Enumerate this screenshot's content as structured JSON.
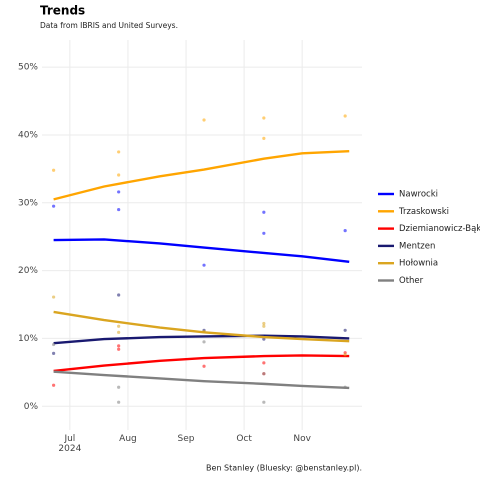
{
  "chart_data": {
    "type": "line",
    "title": "Trends",
    "subtitle": "Data from IBRIS and United Surveys.",
    "caption": "Ben Stanley (Bluesky: @benstanley.pl).",
    "xlim": [
      6.52,
      12.03
    ],
    "xticks": [
      {
        "value": 7,
        "label": "Jul\n2024"
      },
      {
        "value": 8,
        "label": "Aug"
      },
      {
        "value": 9,
        "label": "Sep"
      },
      {
        "value": 10,
        "label": "Oct"
      },
      {
        "value": 11,
        "label": "Nov"
      }
    ],
    "ylim": [
      -3.5,
      54
    ],
    "yticks": [
      {
        "value": 0,
        "label": "0%"
      },
      {
        "value": 10,
        "label": "10%"
      },
      {
        "value": 20,
        "label": "20%"
      },
      {
        "value": 30,
        "label": "30%"
      },
      {
        "value": 40,
        "label": "40%"
      },
      {
        "value": 50,
        "label": "50%"
      }
    ],
    "grid": true,
    "legend": "right",
    "series": [
      {
        "name": "Nawrocki",
        "color": "#0000ff",
        "x": [
          6.72,
          7.84,
          7.84,
          9.31,
          10.34,
          10.34,
          11.74
        ],
        "values": [
          29.5,
          31.6,
          29.0,
          20.8,
          28.6,
          25.5,
          25.9
        ],
        "smooth_x": [
          6.72,
          7.59,
          8.55,
          9.31,
          10.34,
          11.0,
          11.81
        ],
        "smooth": [
          24.5,
          24.6,
          24.0,
          23.4,
          22.6,
          22.1,
          21.3
        ]
      },
      {
        "name": "Trzaskowski",
        "color": "#ffa500",
        "x": [
          6.72,
          7.84,
          7.84,
          9.31,
          10.34,
          10.34,
          11.74
        ],
        "values": [
          34.8,
          37.5,
          34.1,
          42.2,
          42.5,
          39.5,
          42.8
        ],
        "smooth_x": [
          6.72,
          7.59,
          8.55,
          9.31,
          10.34,
          11.0,
          11.81
        ],
        "smooth": [
          30.5,
          32.4,
          33.9,
          34.9,
          36.5,
          37.3,
          37.6
        ]
      },
      {
        "name": "Dziemianowicz-Bąk",
        "color": "#ff0000",
        "x": [
          6.72,
          7.84,
          7.84,
          9.31,
          10.34,
          10.34,
          11.74
        ],
        "values": [
          3.1,
          8.9,
          8.4,
          5.9,
          6.4,
          4.8,
          7.9
        ],
        "smooth_x": [
          6.72,
          7.59,
          8.55,
          9.31,
          10.34,
          11.0,
          11.81
        ],
        "smooth": [
          5.2,
          6.0,
          6.7,
          7.1,
          7.4,
          7.5,
          7.4
        ]
      },
      {
        "name": "Mentzen",
        "color": "#191970",
        "x": [
          6.72,
          7.84,
          9.31,
          10.34,
          11.74
        ],
        "values": [
          7.8,
          16.4,
          11.2,
          9.9,
          11.2
        ],
        "smooth_x": [
          6.72,
          7.59,
          8.55,
          9.31,
          10.34,
          11.0,
          11.81
        ],
        "smooth": [
          9.3,
          9.9,
          10.2,
          10.3,
          10.4,
          10.3,
          10.0
        ]
      },
      {
        "name": "Hołownia",
        "color": "#daa520",
        "x": [
          6.72,
          7.84,
          7.84,
          9.31,
          10.34,
          10.34,
          11.74
        ],
        "values": [
          16.1,
          11.8,
          10.9,
          11.0,
          12.2,
          11.8,
          7.6
        ],
        "smooth_x": [
          6.72,
          7.59,
          8.55,
          9.31,
          10.34,
          11.0,
          11.81
        ],
        "smooth": [
          13.9,
          12.7,
          11.6,
          10.9,
          10.2,
          9.9,
          9.6
        ]
      },
      {
        "name": "Other",
        "color": "#808080",
        "x": [
          6.72,
          7.84,
          7.84,
          9.31,
          10.34,
          10.34,
          11.74
        ],
        "values": [
          9.1,
          2.8,
          0.6,
          9.5,
          4.8,
          0.6,
          2.8
        ],
        "smooth_x": [
          6.72,
          7.59,
          8.55,
          9.31,
          10.34,
          11.0,
          11.81
        ],
        "smooth": [
          5.1,
          4.6,
          4.1,
          3.7,
          3.3,
          3.0,
          2.7
        ]
      }
    ]
  }
}
